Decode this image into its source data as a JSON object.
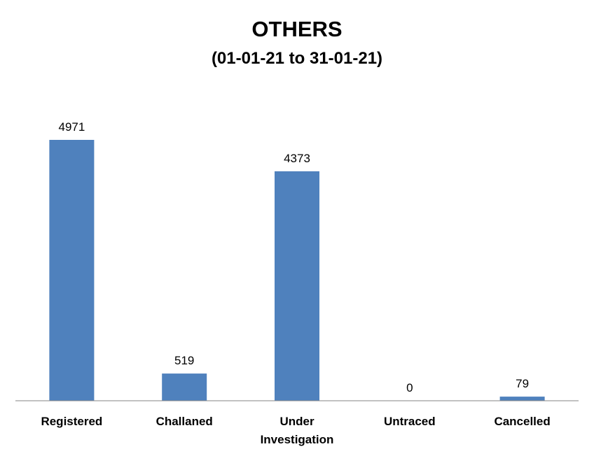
{
  "chart_data": {
    "type": "bar",
    "title": "OTHERS",
    "subtitle": "(01-01-21 to 31-01-21)",
    "categories": [
      "Registered",
      "Challaned",
      "Under Investigation",
      "Untraced",
      "Cancelled"
    ],
    "category_lines": [
      [
        "Registered"
      ],
      [
        "Challaned"
      ],
      [
        "Under",
        "Investigation"
      ],
      [
        "Untraced"
      ],
      [
        "Cancelled"
      ]
    ],
    "values": [
      4971,
      519,
      4373,
      0,
      79
    ],
    "xlabel": "",
    "ylabel": "",
    "ylim": [
      0,
      4971
    ],
    "grid": false,
    "legend": "none",
    "bar_color": "#4f81bd",
    "axis_color": "#868686"
  }
}
